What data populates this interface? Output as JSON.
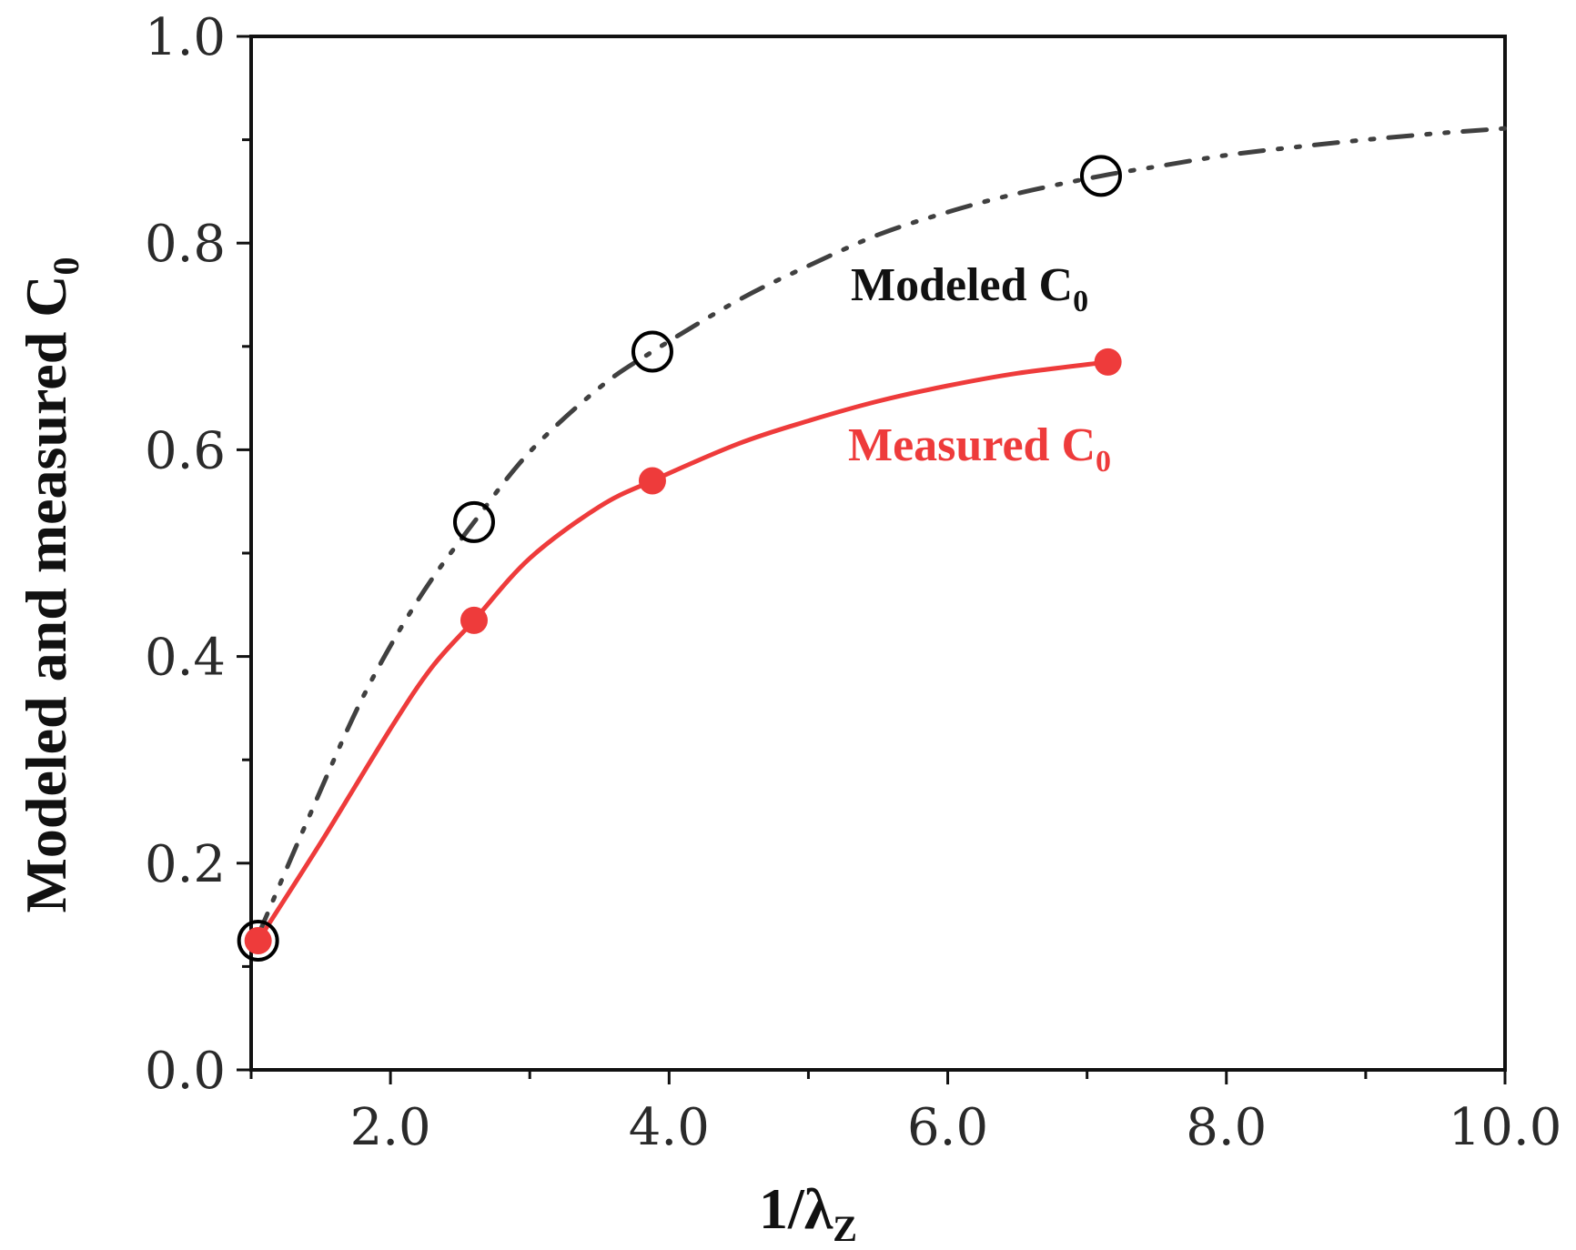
{
  "chart_data": {
    "type": "line",
    "title": "",
    "xlabel": {
      "main": "1/λ",
      "sub": "Z"
    },
    "ylabel": {
      "main": "Modeled and measured C",
      "sub": "0"
    },
    "xlim": [
      1.0,
      10.0
    ],
    "ylim": [
      0.0,
      1.0
    ],
    "x_ticks": [
      2.0,
      4.0,
      6.0,
      8.0,
      10.0
    ],
    "x_tick_labels": [
      "2.0",
      "4.0",
      "6.0",
      "8.0",
      "10.0"
    ],
    "y_ticks": [
      0.0,
      0.2,
      0.4,
      0.6,
      0.8,
      1.0
    ],
    "y_tick_labels": [
      "0.0",
      "0.2",
      "0.4",
      "0.6",
      "0.8",
      "1.0"
    ],
    "grid": false,
    "series": [
      {
        "name": "Modeled C0",
        "label": {
          "main": "Modeled C",
          "sub": "0"
        },
        "color": "#000000",
        "line_color": "#404040",
        "line_style": "dash-dot-dot",
        "marker": "open-circle",
        "points": {
          "x": [
            1.05,
            2.6,
            3.88,
            7.1
          ],
          "y": [
            0.125,
            0.53,
            0.695,
            0.865
          ]
        },
        "curve": {
          "x": [
            1.05,
            1.4,
            1.8,
            2.2,
            2.6,
            3.0,
            3.5,
            3.88,
            4.5,
            5.0,
            5.5,
            6.0,
            6.5,
            7.1,
            7.5,
            8.0,
            8.5,
            9.0,
            9.5,
            10.0
          ],
          "y": [
            0.13,
            0.24,
            0.36,
            0.455,
            0.53,
            0.598,
            0.66,
            0.695,
            0.745,
            0.778,
            0.808,
            0.83,
            0.848,
            0.865,
            0.874,
            0.885,
            0.893,
            0.9,
            0.906,
            0.911
          ]
        }
      },
      {
        "name": "Measured C0",
        "label": {
          "main": "Measured C",
          "sub": "0"
        },
        "color": "#ee3b3b",
        "line_color": "#ee3b3b",
        "line_style": "solid",
        "marker": "filled-circle",
        "points": {
          "x": [
            1.05,
            2.6,
            3.88,
            7.15
          ],
          "y": [
            0.125,
            0.435,
            0.57,
            0.685
          ]
        },
        "curve": {
          "x": [
            1.05,
            1.5,
            2.0,
            2.3,
            2.6,
            3.0,
            3.5,
            3.88,
            4.5,
            5.0,
            5.5,
            6.0,
            6.5,
            7.15
          ],
          "y": [
            0.125,
            0.22,
            0.33,
            0.39,
            0.435,
            0.495,
            0.545,
            0.57,
            0.606,
            0.628,
            0.647,
            0.662,
            0.674,
            0.685
          ]
        }
      }
    ]
  }
}
